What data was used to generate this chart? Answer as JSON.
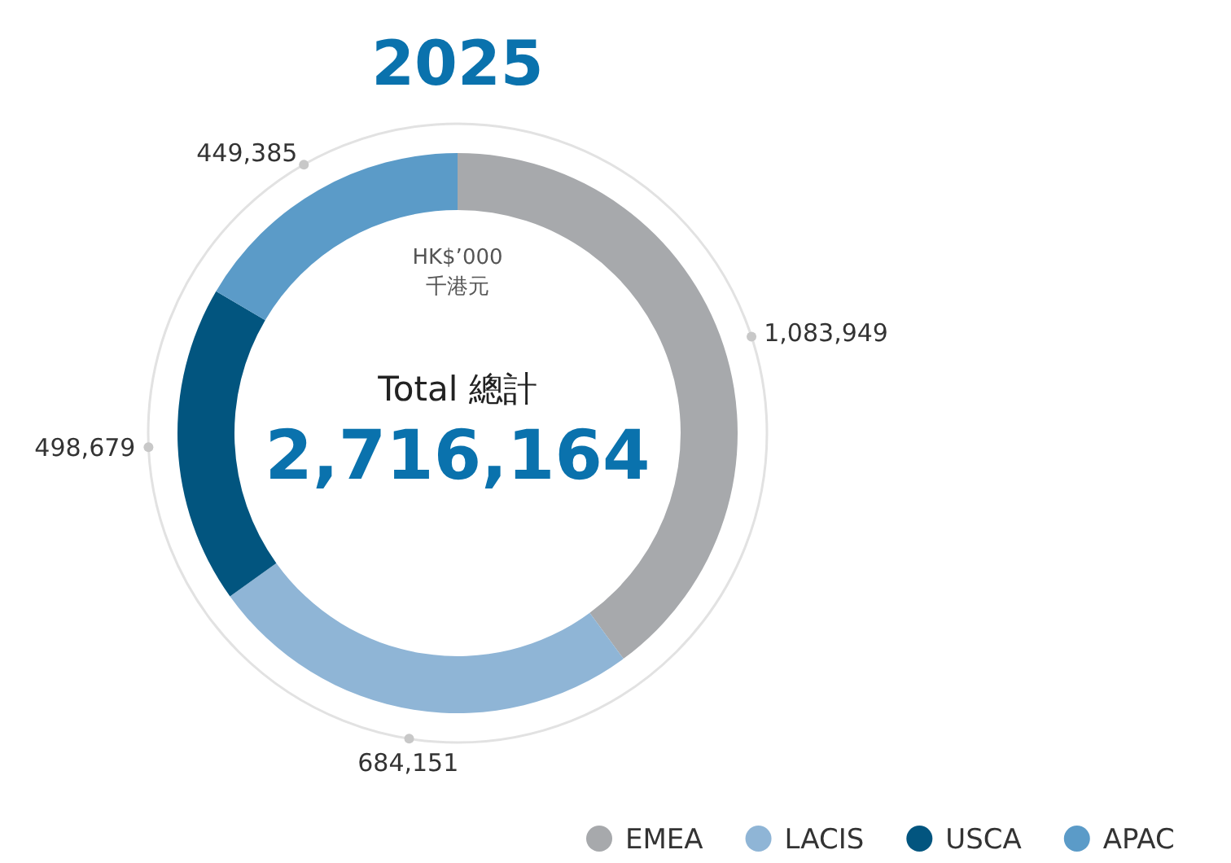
{
  "chart_data": {
    "type": "donut",
    "title": "2025",
    "categories": [
      "EMEA",
      "LACIS",
      "USCA",
      "APAC"
    ],
    "values": [
      1083949,
      684151,
      498679,
      449385
    ],
    "colors": [
      "#a7a9ac",
      "#8fb5d6",
      "#02557f",
      "#5b9bc8"
    ],
    "value_labels": [
      "1,083,949",
      "684,151",
      "498,679",
      "449,385"
    ],
    "legend": "bottom",
    "annotations": [
      "HK$’000",
      "千港元",
      "Total 總計",
      "2,716,164"
    ]
  }
}
